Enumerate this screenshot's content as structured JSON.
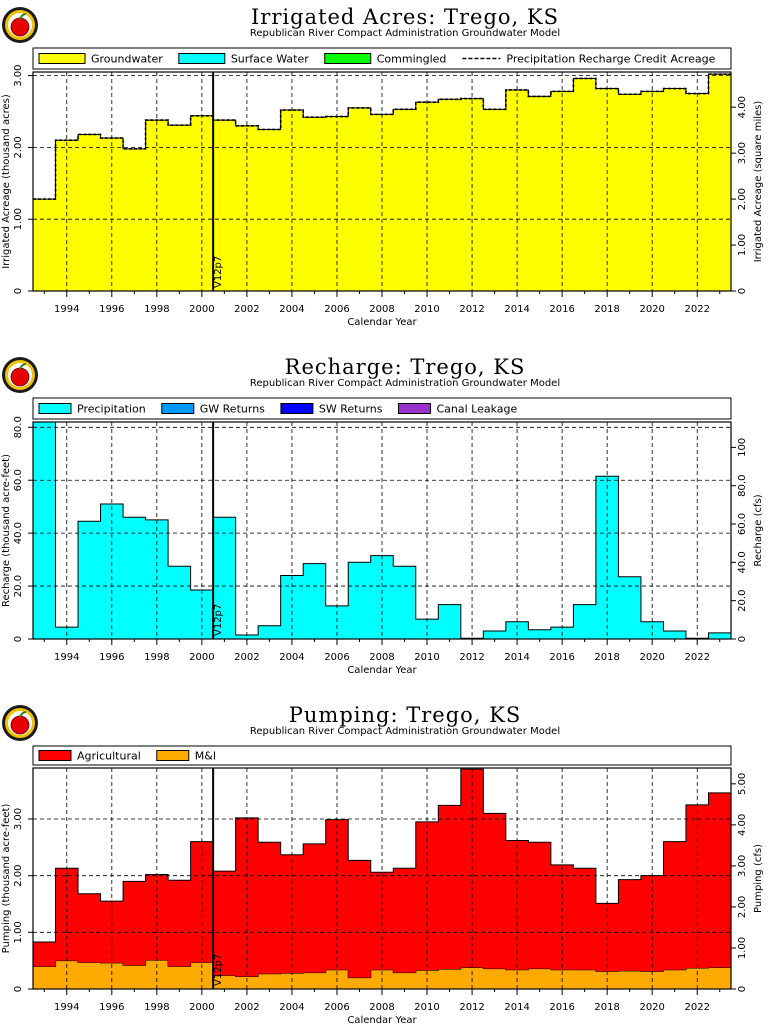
{
  "chart_data": [
    {
      "type": "area",
      "title": "Irrigated Acres: Trego, KS",
      "subtitle": "Republican River Compact Administration Groundwater Model",
      "xlabel": "Calendar Year",
      "ylabel": "Irrigated Acreage (thousand acres)",
      "ylabel_right": "Irrigated Acreage (square miles)",
      "logo_icon": "apple-logo-icon",
      "marker_label": "V12p7",
      "marker_x": 2000.5,
      "xlim": [
        1992.5,
        2023.5
      ],
      "ylim": [
        0,
        3.05
      ],
      "xticks": [
        "1994",
        "1996",
        "1998",
        "2000",
        "2002",
        "2004",
        "2006",
        "2008",
        "2010",
        "2012",
        "2014",
        "2016",
        "2018",
        "2020",
        "2022"
      ],
      "yticks": [
        "0",
        "1.00",
        "2.00",
        "3.00"
      ],
      "yticks_right": [
        "0",
        "1.00",
        "2.00",
        "3.00",
        "4.00"
      ],
      "legend": [
        "Groundwater",
        "Surface Water",
        "Commingled",
        "Precipitation Recharge Credit Acreage"
      ],
      "years": [
        1993,
        1994,
        1995,
        1996,
        1997,
        1998,
        1999,
        2000,
        2001,
        2002,
        2003,
        2004,
        2005,
        2006,
        2007,
        2008,
        2009,
        2010,
        2011,
        2012,
        2013,
        2014,
        2015,
        2016,
        2017,
        2018,
        2019,
        2020,
        2021,
        2022,
        2023
      ],
      "series": [
        {
          "name": "Groundwater",
          "color": "#ffff00",
          "values": [
            1.28,
            2.1,
            2.18,
            2.13,
            1.98,
            2.38,
            2.31,
            2.44,
            2.38,
            2.3,
            2.25,
            2.52,
            2.42,
            2.43,
            2.55,
            2.46,
            2.53,
            2.63,
            2.67,
            2.68,
            2.53,
            2.8,
            2.71,
            2.78,
            2.96,
            2.82,
            2.74,
            2.78,
            2.82,
            2.75,
            3.02
          ]
        },
        {
          "name": "Surface Water",
          "color": "#00ffff",
          "values": [
            0,
            0,
            0,
            0,
            0,
            0,
            0,
            0,
            0,
            0,
            0,
            0,
            0,
            0,
            0,
            0,
            0,
            0,
            0,
            0,
            0,
            0,
            0,
            0,
            0,
            0,
            0,
            0,
            0,
            0,
            0
          ]
        },
        {
          "name": "Commingled",
          "color": "#00ff00",
          "values": [
            0,
            0,
            0,
            0,
            0,
            0,
            0,
            0,
            0,
            0,
            0,
            0,
            0,
            0,
            0,
            0,
            0,
            0,
            0,
            0,
            0,
            0,
            0,
            0,
            0,
            0,
            0,
            0,
            0,
            0,
            0
          ]
        },
        {
          "name": "Precipitation Recharge Credit Acreage",
          "color": "#000000",
          "values": [
            1.28,
            2.1,
            2.18,
            2.13,
            1.98,
            2.38,
            2.31,
            2.44,
            2.38,
            2.3,
            2.25,
            2.52,
            2.42,
            2.43,
            2.55,
            2.46,
            2.53,
            2.63,
            2.67,
            2.68,
            2.53,
            2.8,
            2.71,
            2.78,
            2.96,
            2.82,
            2.74,
            2.78,
            2.82,
            2.75,
            3.02
          ]
        }
      ]
    },
    {
      "type": "area",
      "title": "Recharge: Trego, KS",
      "subtitle": "Republican River Compact Administration Groundwater Model",
      "xlabel": "Calendar Year",
      "ylabel": "Recharge (thousand acre-feet)",
      "ylabel_right": "Recharge (cfs)",
      "logo_icon": "apple-logo-icon",
      "marker_label": "V12p7",
      "marker_x": 2000.5,
      "xlim": [
        1992.5,
        2023.5
      ],
      "ylim": [
        0,
        82
      ],
      "xticks": [
        "1994",
        "1996",
        "1998",
        "2000",
        "2002",
        "2004",
        "2006",
        "2008",
        "2010",
        "2012",
        "2014",
        "2016",
        "2018",
        "2020",
        "2022"
      ],
      "yticks": [
        "0",
        "20.0",
        "40.0",
        "60.0",
        "80.0"
      ],
      "yticks_right": [
        "0",
        "20.0",
        "40.0",
        "60.0",
        "80.0",
        "100"
      ],
      "legend": [
        "Precipitation",
        "GW Returns",
        "SW Returns",
        "Canal Leakage"
      ],
      "years": [
        1993,
        1994,
        1995,
        1996,
        1997,
        1998,
        1999,
        2000,
        2001,
        2002,
        2003,
        2004,
        2005,
        2006,
        2007,
        2008,
        2009,
        2010,
        2011,
        2012,
        2013,
        2014,
        2015,
        2016,
        2017,
        2018,
        2019,
        2020,
        2021,
        2022,
        2023
      ],
      "series": [
        {
          "name": "Precipitation",
          "color": "#00ffff",
          "values": [
            82,
            4.5,
            44.5,
            51,
            46,
            45,
            27.5,
            18.5,
            46,
            1.5,
            5,
            24,
            28.5,
            12.5,
            29,
            31.5,
            27.5,
            7.5,
            13,
            0.3,
            3,
            6.5,
            3.5,
            4.5,
            13,
            61.5,
            23.5,
            6.5,
            3,
            0.3,
            2.3
          ]
        },
        {
          "name": "GW Returns",
          "color": "#0099ff",
          "values": [
            0,
            0,
            0,
            0,
            0,
            0,
            0,
            0,
            0,
            0,
            0,
            0,
            0,
            0,
            0,
            0,
            0,
            0,
            0,
            0,
            0,
            0,
            0,
            0,
            0,
            0,
            0,
            0,
            0,
            0,
            0
          ]
        },
        {
          "name": "SW Returns",
          "color": "#0000ff",
          "values": [
            0,
            0,
            0,
            0,
            0,
            0,
            0,
            0,
            0,
            0,
            0,
            0,
            0,
            0,
            0,
            0,
            0,
            0,
            0,
            0,
            0,
            0,
            0,
            0,
            0,
            0,
            0,
            0,
            0,
            0,
            0
          ]
        },
        {
          "name": "Canal Leakage",
          "color": "#9933cc",
          "values": [
            0,
            0,
            0,
            0,
            0,
            0,
            0,
            0,
            0,
            0,
            0,
            0,
            0,
            0,
            0,
            0,
            0,
            0,
            0,
            0,
            0,
            0,
            0,
            0,
            0,
            0,
            0,
            0,
            0,
            0,
            0
          ]
        }
      ]
    },
    {
      "type": "area",
      "title": "Pumping: Trego, KS",
      "subtitle": "Republican River Compact Administration Groundwater Model",
      "xlabel": "Calendar Year",
      "ylabel": "Pumping (thousand acre-feet)",
      "ylabel_right": "Pumping (cfs)",
      "logo_icon": "apple-logo-icon",
      "marker_label": "V12p7",
      "marker_x": 2000.5,
      "xlim": [
        1992.5,
        2023.5
      ],
      "ylim": [
        0,
        3.9
      ],
      "xticks": [
        "1994",
        "1996",
        "1998",
        "2000",
        "2002",
        "2004",
        "2006",
        "2008",
        "2010",
        "2012",
        "2014",
        "2016",
        "2018",
        "2020",
        "2022"
      ],
      "yticks": [
        "0",
        "1.00",
        "2.00",
        "3.00"
      ],
      "yticks_right": [
        "0",
        "1.00",
        "2.00",
        "3.00",
        "4.00",
        "5.00"
      ],
      "legend": [
        "Agricultural",
        "M&I"
      ],
      "years": [
        1993,
        1994,
        1995,
        1996,
        1997,
        1998,
        1999,
        2000,
        2001,
        2002,
        2003,
        2004,
        2005,
        2006,
        2007,
        2008,
        2009,
        2010,
        2011,
        2012,
        2013,
        2014,
        2015,
        2016,
        2017,
        2018,
        2019,
        2020,
        2021,
        2022,
        2023
      ],
      "series": [
        {
          "name": "M&I",
          "color": "#ffaa00",
          "values": [
            0.4,
            0.5,
            0.47,
            0.46,
            0.42,
            0.51,
            0.4,
            0.47,
            0.24,
            0.22,
            0.27,
            0.28,
            0.29,
            0.34,
            0.2,
            0.34,
            0.29,
            0.33,
            0.35,
            0.38,
            0.36,
            0.34,
            0.36,
            0.34,
            0.34,
            0.31,
            0.32,
            0.31,
            0.34,
            0.37,
            0.38
          ]
        },
        {
          "name": "Agricultural",
          "color": "#ff0000",
          "values": [
            0.43,
            1.63,
            1.21,
            1.09,
            1.48,
            1.51,
            1.52,
            2.13,
            1.84,
            2.8,
            2.32,
            2.09,
            2.27,
            2.65,
            2.07,
            1.72,
            1.84,
            2.62,
            2.89,
            3.5,
            2.74,
            2.28,
            2.23,
            1.85,
            1.79,
            1.2,
            1.61,
            1.69,
            2.26,
            2.88,
            3.08
          ]
        }
      ]
    }
  ]
}
